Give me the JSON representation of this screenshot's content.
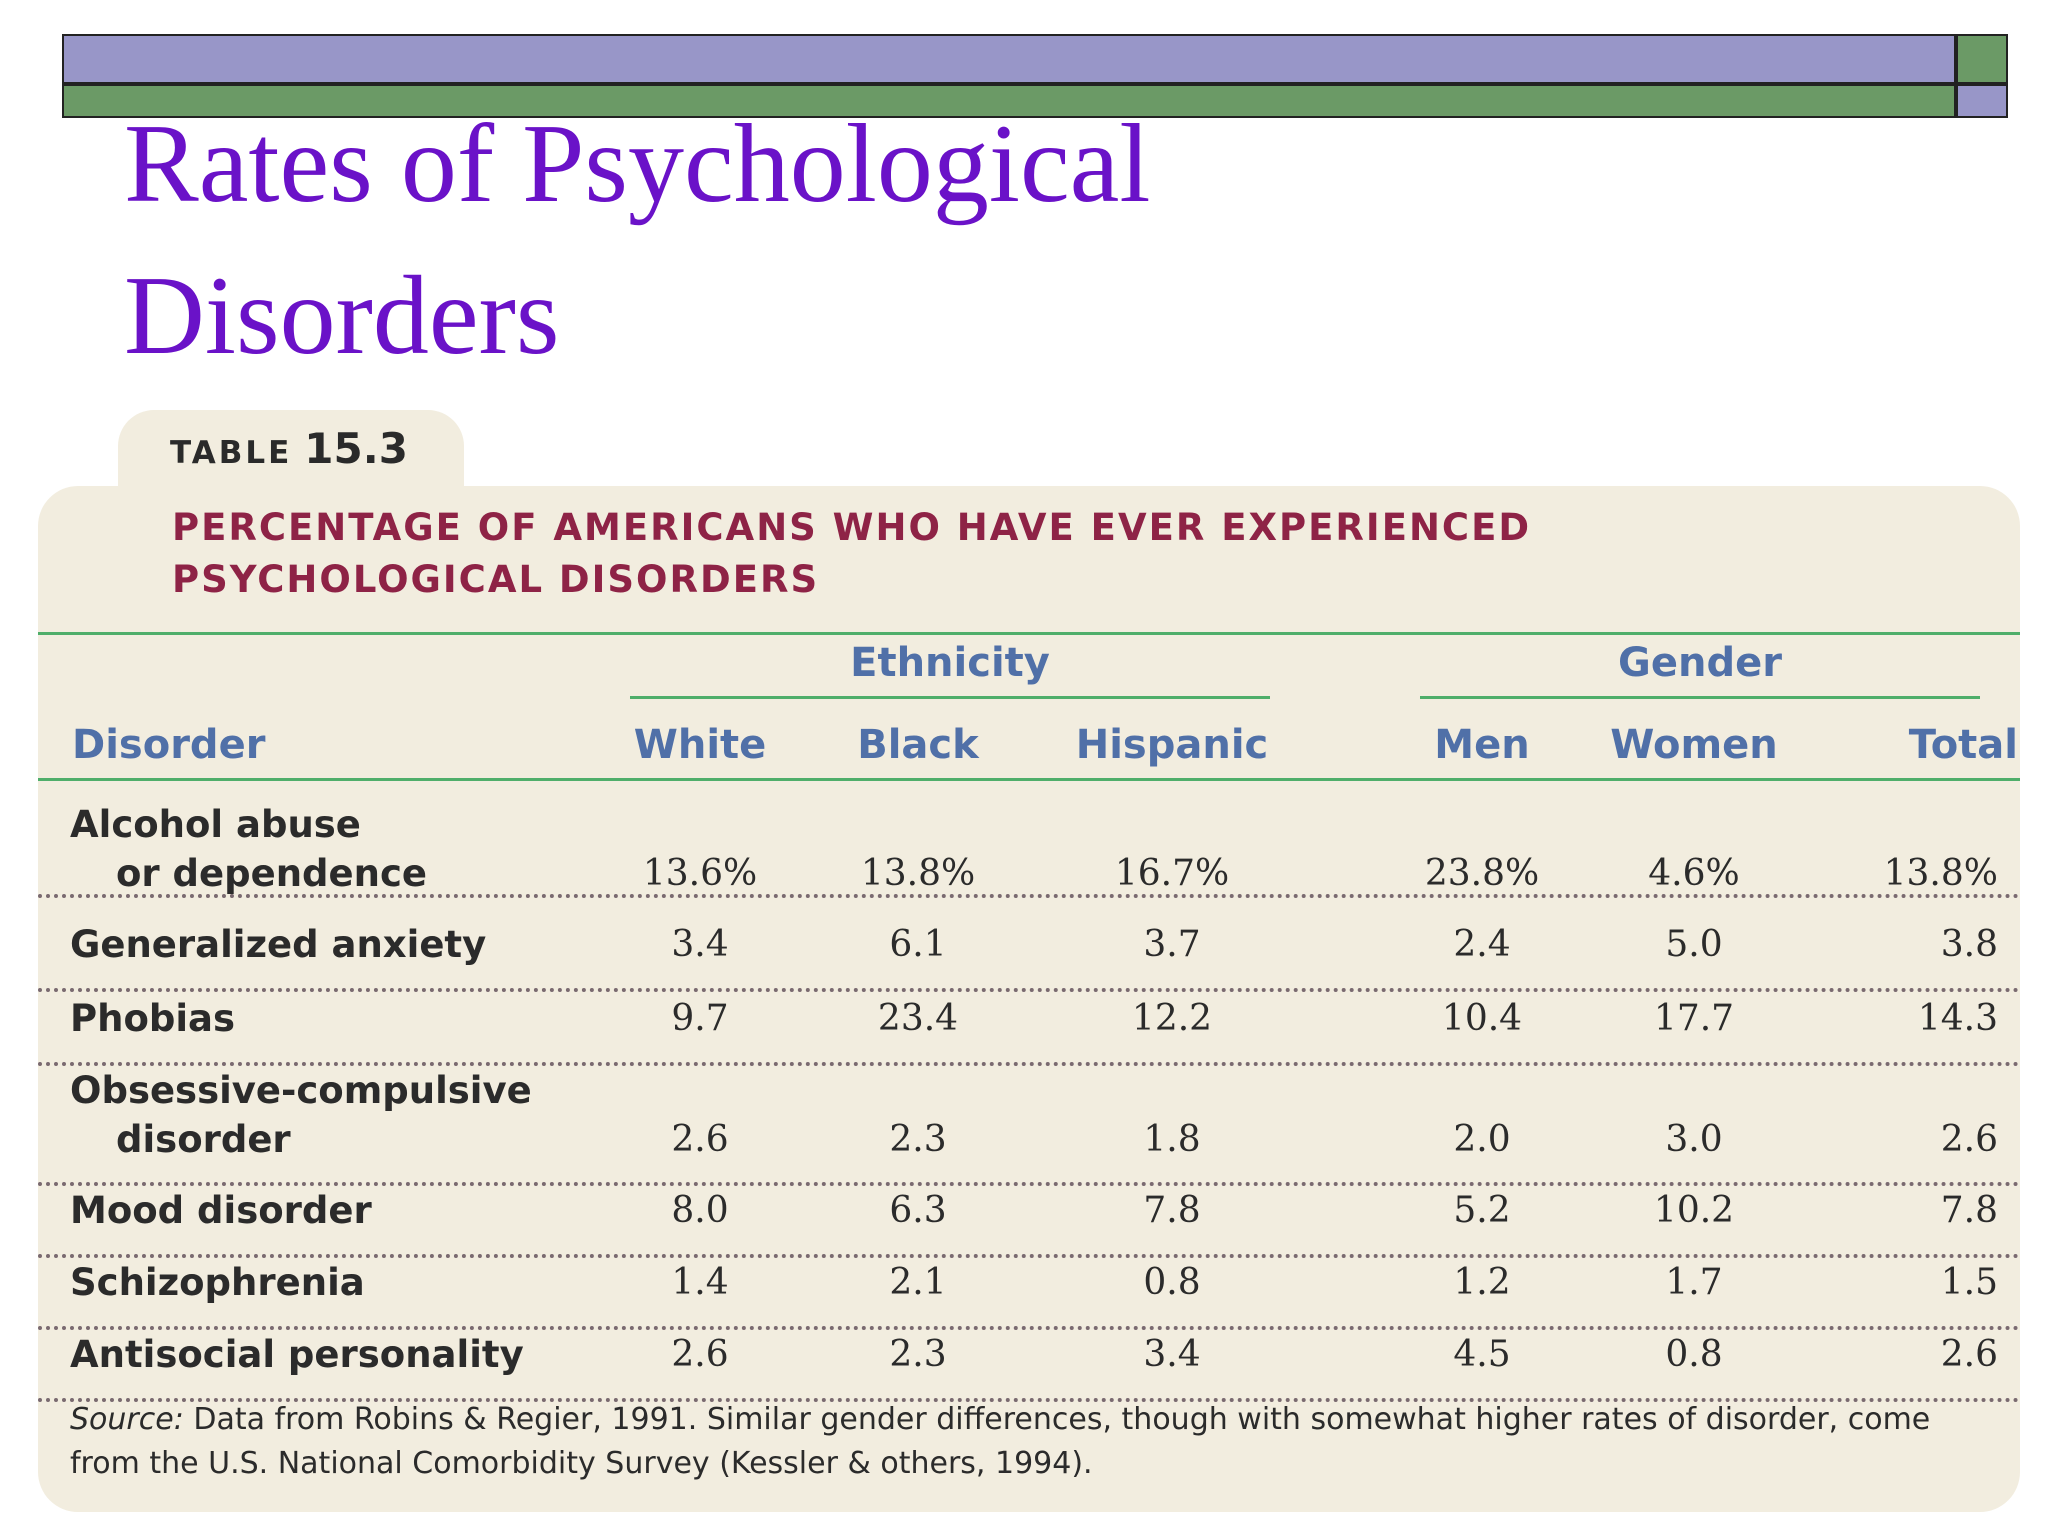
{
  "slide": {
    "title": "Rates of Psychological Disorders"
  },
  "table": {
    "label_word": "TABLE",
    "label_number": "15.3",
    "title_line1": "PERCENTAGE OF AMERICANS WHO HAVE EVER EXPERIENCED",
    "title_line2": "PSYCHOLOGICAL DISORDERS",
    "group_headers": {
      "ethnicity": "Ethnicity",
      "gender": "Gender"
    },
    "columns": [
      "Disorder",
      "White",
      "Black",
      "Hispanic",
      "Men",
      "Women",
      "Total"
    ],
    "rows": [
      {
        "label_line1": "Alcohol abuse",
        "label_line2": "or dependence",
        "values": [
          "13.6%",
          "13.8%",
          "16.7%",
          "23.8%",
          "4.6%",
          "13.8%"
        ]
      },
      {
        "label_line1": "Generalized anxiety",
        "label_line2": "",
        "values": [
          "3.4",
          "6.1",
          "3.7",
          "2.4",
          "5.0",
          "3.8"
        ]
      },
      {
        "label_line1": "Phobias",
        "label_line2": "",
        "values": [
          "9.7",
          "23.4",
          "12.2",
          "10.4",
          "17.7",
          "14.3"
        ]
      },
      {
        "label_line1": "Obsessive-compulsive",
        "label_line2": "disorder",
        "values": [
          "2.6",
          "2.3",
          "1.8",
          "2.0",
          "3.0",
          "2.6"
        ]
      },
      {
        "label_line1": "Mood disorder",
        "label_line2": "",
        "values": [
          "8.0",
          "6.3",
          "7.8",
          "5.2",
          "10.2",
          "7.8"
        ]
      },
      {
        "label_line1": "Schizophrenia",
        "label_line2": "",
        "values": [
          "1.4",
          "2.1",
          "0.8",
          "1.2",
          "1.7",
          "1.5"
        ]
      },
      {
        "label_line1": "Antisocial personality",
        "label_line2": "",
        "values": [
          "2.6",
          "2.3",
          "3.4",
          "4.5",
          "0.8",
          "2.6"
        ]
      }
    ],
    "source_label": "Source:",
    "source_text": "Data from Robins & Regier, 1991. Similar gender differences, though with somewhat higher rates of disorder, come from the U.S. National Comorbidity Survey (Kessler & others, 1994).",
    "colors": {
      "title": "#8e2346",
      "header": "#5070a8",
      "rule": "#4fae6a",
      "card": "#f2eddf",
      "slide_title": "#6a12c8"
    }
  }
}
